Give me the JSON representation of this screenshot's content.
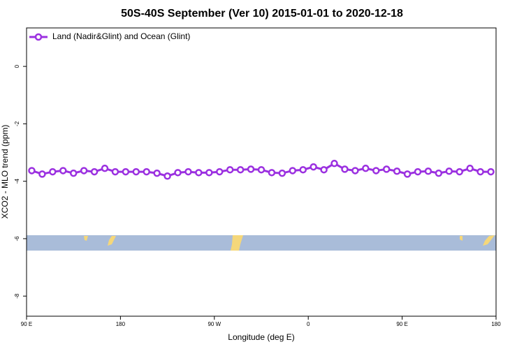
{
  "chart_data": {
    "type": "line",
    "title": "50S-40S September (Ver 10)   2015-01-01 to 2020-12-18",
    "xlabel": "Longitude (deg E)",
    "ylabel": "XCO2 - MLO trend (ppm)",
    "x": [
      95,
      105,
      115,
      125,
      135,
      145,
      155,
      165,
      175,
      185,
      195,
      205,
      215,
      225,
      235,
      245,
      255,
      265,
      275,
      285,
      295,
      305,
      315,
      325,
      335,
      345,
      355,
      365,
      375,
      385,
      395,
      405,
      415,
      425,
      435,
      445,
      455,
      465,
      475,
      485,
      495,
      505,
      515,
      525,
      535
    ],
    "series": [
      {
        "name": "Land (Nadir&Glint) and Ocean (Glint)",
        "color": "#9b30e0",
        "values": [
          -3.63,
          -3.75,
          -3.67,
          -3.63,
          -3.72,
          -3.63,
          -3.67,
          -3.55,
          -3.67,
          -3.67,
          -3.67,
          -3.67,
          -3.72,
          -3.82,
          -3.7,
          -3.67,
          -3.7,
          -3.7,
          -3.67,
          -3.6,
          -3.6,
          -3.58,
          -3.6,
          -3.7,
          -3.72,
          -3.63,
          -3.6,
          -3.5,
          -3.6,
          -3.38,
          -3.58,
          -3.63,
          -3.55,
          -3.63,
          -3.58,
          -3.65,
          -3.75,
          -3.67,
          -3.65,
          -3.72,
          -3.65,
          -3.67,
          -3.55,
          -3.67,
          -3.67
        ]
      }
    ],
    "xlim": [
      90,
      540
    ],
    "xticks": [
      {
        "value": 90,
        "label": "90 E"
      },
      180,
      {
        "value": 270,
        "label": "90 W"
      },
      {
        "value": 360,
        "label": "0"
      },
      {
        "value": 450,
        "label": "90 E"
      },
      {
        "value": 540,
        "label": "180"
      }
    ],
    "ylim": [
      -8.7,
      1.34
    ],
    "yticks": [
      0,
      -2,
      -4,
      -6,
      -8
    ],
    "legend": "top-left"
  }
}
